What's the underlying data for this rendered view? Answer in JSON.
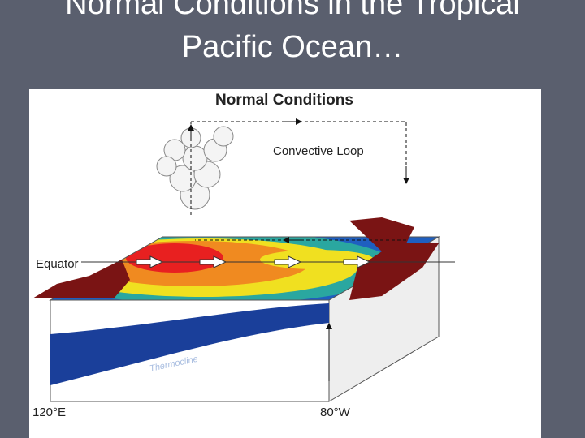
{
  "slide": {
    "title": "Normal Conditions in the Tropical Pacific Ocean…"
  },
  "diagram": {
    "title": "Normal Conditions",
    "loop_label": "Convective Loop",
    "equator_label": "Equator",
    "thermocline_label": "Thermocline",
    "west_label": "120°E",
    "east_label": "80°W"
  }
}
